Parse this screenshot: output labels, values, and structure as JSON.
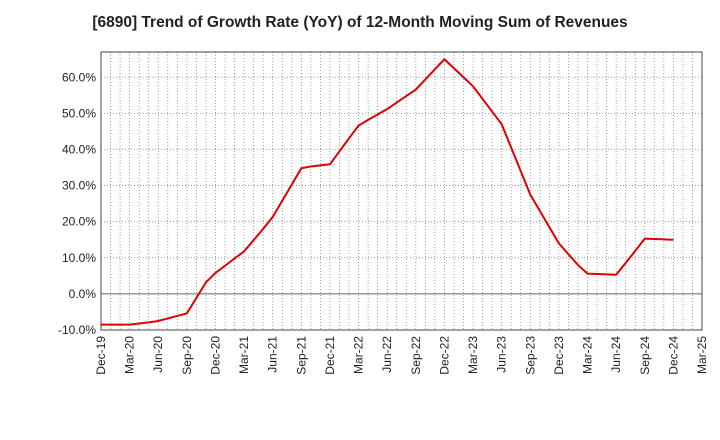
{
  "chart_data": {
    "type": "line",
    "title": "[6890]  Trend of Growth Rate (YoY) of 12-Month Moving Sum of Revenues",
    "xlabel": "",
    "ylabel": "",
    "ylim": [
      -10,
      67
    ],
    "y_ticks": [
      -10,
      0,
      10,
      20,
      30,
      40,
      50,
      60
    ],
    "y_tick_labels": [
      "-10.0%",
      "0.0%",
      "10.0%",
      "20.0%",
      "30.0%",
      "40.0%",
      "50.0%",
      "60.0%"
    ],
    "x_tick_labels": [
      "Dec-19",
      "Mar-20",
      "Jun-20",
      "Sep-20",
      "Dec-20",
      "Mar-21",
      "Jun-21",
      "Sep-21",
      "Dec-21",
      "Mar-22",
      "Jun-22",
      "Sep-22",
      "Dec-22",
      "Mar-23",
      "Jun-23",
      "Sep-23",
      "Dec-23",
      "Mar-24",
      "Jun-24",
      "Sep-24",
      "Dec-24",
      "Mar-25"
    ],
    "grid": true,
    "line_color": "#e00000",
    "series": [
      {
        "x": [
          "Dec-19",
          "Jan-20",
          "Feb-20",
          "Mar-20",
          "Apr-20",
          "May-20",
          "Jun-20",
          "Jul-20",
          "Aug-20",
          "Sep-20",
          "Oct-20",
          "Nov-20",
          "Dec-20",
          "Jan-21",
          "Feb-21",
          "Mar-21",
          "Apr-21",
          "May-21",
          "Jun-21",
          "Jul-21",
          "Aug-21",
          "Sep-21",
          "Oct-21",
          "Nov-21",
          "Dec-21",
          "Jan-22",
          "Feb-22",
          "Mar-22",
          "Apr-22",
          "May-22",
          "Jun-22",
          "Jul-22",
          "Aug-22",
          "Sep-22",
          "Oct-22",
          "Nov-22",
          "Dec-22",
          "Jan-23",
          "Feb-23",
          "Mar-23",
          "Apr-23",
          "May-23",
          "Jun-23",
          "Jul-23",
          "Aug-23",
          "Sep-23",
          "Oct-23",
          "Nov-23",
          "Dec-23",
          "Jan-24",
          "Feb-24",
          "Mar-24",
          "Apr-24",
          "May-24",
          "Jun-24",
          "Jul-24",
          "Aug-24",
          "Sep-24",
          "Oct-24",
          "Nov-24",
          "Dec-24"
        ],
        "values": [
          -8.5,
          -8.5,
          -8.5,
          -8.5,
          -8.2,
          -7.9,
          -7.5,
          -6.8,
          -6.1,
          -5.4,
          -1.1,
          3.2,
          5.8,
          7.8,
          9.8,
          11.8,
          14.9,
          18.0,
          21.3,
          25.8,
          30.3,
          34.8,
          35.3,
          35.6,
          35.9,
          39.5,
          43.1,
          46.6,
          48.2,
          49.7,
          51.2,
          53.0,
          54.8,
          56.6,
          59.4,
          62.2,
          65.0,
          62.5,
          60.0,
          57.5,
          54.0,
          50.5,
          47.0,
          40.5,
          34.0,
          27.5,
          23.0,
          18.5,
          14.0,
          11.0,
          8.0,
          5.6,
          5.5,
          5.4,
          5.3,
          8.6,
          11.9,
          15.3,
          15.2,
          15.1,
          15.0
        ]
      }
    ]
  }
}
